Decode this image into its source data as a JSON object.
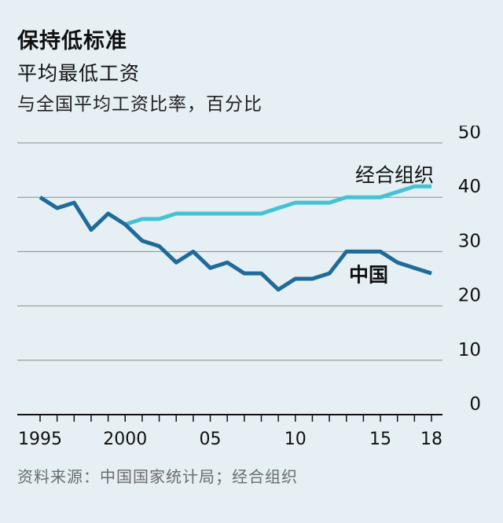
{
  "header": {
    "title": "保持低标准",
    "subtitle": "平均最低工资",
    "unit": "与全国平均工资比率，百分比"
  },
  "footer": {
    "source": "资料来源：中国国家统计局；经合组织"
  },
  "colors": {
    "background": "#e5eff4",
    "china": "#1f6a99",
    "oecd": "#44c2d3",
    "grid": "#8c8c8c",
    "axis": "#111111"
  },
  "chart_data": {
    "type": "line",
    "title": "保持低标准",
    "subtitle": "平均最低工资",
    "ylabel": "与全国平均工资比率，百分比",
    "xlim": [
      1994.5,
      2018.5
    ],
    "ylim": [
      0,
      50
    ],
    "yticks": [
      0,
      10,
      20,
      30,
      40,
      50
    ],
    "xticks": [
      1995,
      2000,
      2005,
      2010,
      2015,
      2018
    ],
    "xtick_labels": [
      "1995",
      "2000",
      "05",
      "10",
      "15",
      "18"
    ],
    "y_axis_position": "right",
    "grid": "horizontal",
    "series": [
      {
        "name": "经合组织",
        "color": "#44c2d3",
        "x": [
          2000,
          2001,
          2002,
          2003,
          2004,
          2005,
          2006,
          2007,
          2008,
          2009,
          2010,
          2011,
          2012,
          2013,
          2014,
          2015,
          2016,
          2017,
          2018
        ],
        "values": [
          35,
          36,
          36,
          37,
          37,
          37,
          37,
          37,
          37,
          38,
          39,
          39,
          39,
          40,
          40,
          40,
          41,
          42,
          42
        ]
      },
      {
        "name": "中国",
        "color": "#1f6a99",
        "x": [
          1995,
          1996,
          1997,
          1998,
          1999,
          2000,
          2001,
          2002,
          2003,
          2004,
          2005,
          2006,
          2007,
          2008,
          2009,
          2010,
          2011,
          2012,
          2013,
          2014,
          2015,
          2016,
          2017,
          2018
        ],
        "values": [
          40,
          38,
          39,
          34,
          37,
          35,
          32,
          31,
          28,
          30,
          27,
          28,
          26,
          26,
          23,
          25,
          25,
          26,
          30,
          30,
          30,
          28,
          27,
          26
        ]
      }
    ]
  }
}
